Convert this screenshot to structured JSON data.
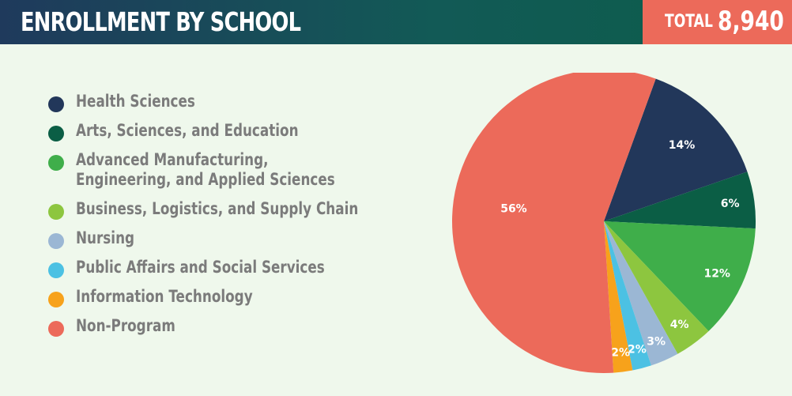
{
  "header": {
    "title": "ENROLLMENT BY SCHOOL",
    "total_label": "TOTAL",
    "total_value": "8,940"
  },
  "chart_data": {
    "type": "pie",
    "title": "ENROLLMENT BY SCHOOL",
    "legend_position": "left",
    "slices": [
      {
        "label": "Health Sciences",
        "value": 14,
        "display": "14%",
        "color": "#22375a"
      },
      {
        "label": "Arts, Sciences, and Education",
        "value": 6,
        "display": "6%",
        "color": "#0b5e45"
      },
      {
        "label": "Advanced Manufacturing, Engineering, and Applied Sciences",
        "value": 12,
        "display": "12%",
        "color": "#3fae4a"
      },
      {
        "label": "Business, Logistics, and Supply Chain",
        "value": 4,
        "display": "4%",
        "color": "#8dc63f"
      },
      {
        "label": "Nursing",
        "value": 3,
        "display": "3%",
        "color": "#9bb7d4"
      },
      {
        "label": "Public Affairs and Social Services",
        "value": 2,
        "display": "2%",
        "color": "#4cc1e3"
      },
      {
        "label": "Information Technology",
        "value": 2,
        "display": "2%",
        "color": "#f7a21b"
      },
      {
        "label": "Non-Program",
        "value": 56,
        "display": "56%",
        "color": "#ec6a5a"
      }
    ]
  }
}
